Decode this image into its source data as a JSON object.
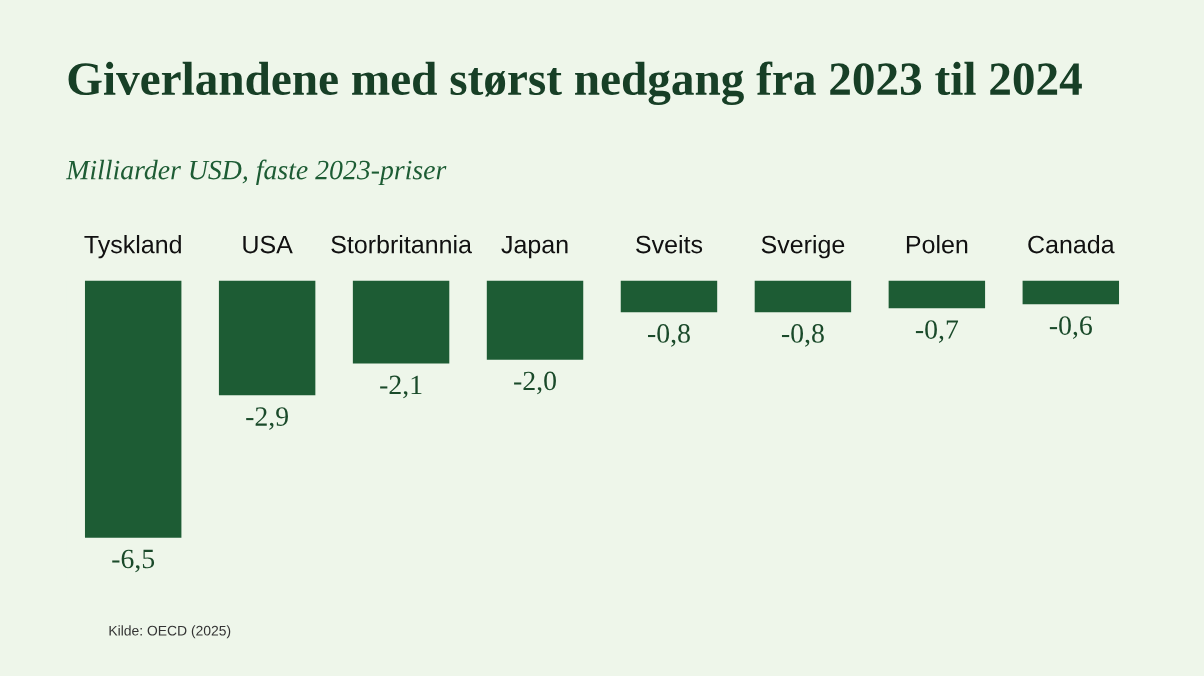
{
  "chart_data": {
    "type": "bar",
    "title": "Giverlandene med størst nedgang fra 2023 til 2024",
    "subtitle": "Milliarder USD, faste 2023-priser",
    "categories": [
      "Tyskland",
      "USA",
      "Storbritannia",
      "Japan",
      "Sveits",
      "Sverige",
      "Polen",
      "Canada"
    ],
    "values": [
      -6.5,
      -2.9,
      -2.1,
      -2.0,
      -0.8,
      -0.8,
      -0.7,
      -0.6
    ],
    "value_labels": [
      "-6,5",
      "-2,9",
      "-2,1",
      "-2,0",
      "-0,8",
      "-0,8",
      "-0,7",
      "-0,6"
    ],
    "color": "#1d5c34",
    "annotations": [
      "Kilde: OECD (2025)"
    ]
  }
}
